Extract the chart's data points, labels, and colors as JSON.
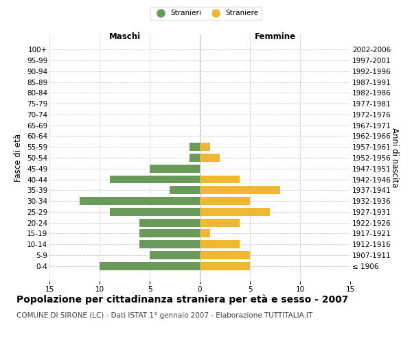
{
  "age_groups": [
    "100+",
    "95-99",
    "90-94",
    "85-89",
    "80-84",
    "75-79",
    "70-74",
    "65-69",
    "60-64",
    "55-59",
    "50-54",
    "45-49",
    "40-44",
    "35-39",
    "30-34",
    "25-29",
    "20-24",
    "15-19",
    "10-14",
    "5-9",
    "0-4"
  ],
  "birth_years": [
    "≤ 1906",
    "1907-1911",
    "1912-1916",
    "1917-1921",
    "1922-1926",
    "1927-1931",
    "1932-1936",
    "1937-1941",
    "1942-1946",
    "1947-1951",
    "1952-1956",
    "1957-1961",
    "1962-1966",
    "1967-1971",
    "1972-1976",
    "1977-1981",
    "1982-1986",
    "1987-1991",
    "1992-1996",
    "1997-2001",
    "2002-2006"
  ],
  "maschi": [
    0,
    0,
    0,
    0,
    0,
    0,
    0,
    0,
    0,
    1,
    1,
    5,
    9,
    3,
    12,
    9,
    6,
    6,
    6,
    5,
    10
  ],
  "femmine": [
    0,
    0,
    0,
    0,
    0,
    0,
    0,
    0,
    0,
    1,
    2,
    0,
    4,
    8,
    5,
    7,
    4,
    1,
    4,
    5,
    5
  ],
  "maschi_color": "#6a9a5a",
  "femmine_color": "#f0b830",
  "legend_maschi": "Stranieri",
  "legend_femmine": "Straniere",
  "maschi_label": "Maschi",
  "femmine_label": "Femmine",
  "ylabel_left": "Fasce di età",
  "ylabel_right": "Anni di nascita",
  "xlim": 15,
  "title": "Popolazione per cittadinanza straniera per età e sesso - 2007",
  "subtitle": "COMUNE DI SIRONE (LC) - Dati ISTAT 1° gennaio 2007 - Elaborazione TUTTITALIA.IT",
  "background_color": "#ffffff",
  "grid_color": "#cccccc",
  "title_fontsize": 10,
  "subtitle_fontsize": 7.5,
  "tick_fontsize": 7.5,
  "label_fontsize": 8.5
}
